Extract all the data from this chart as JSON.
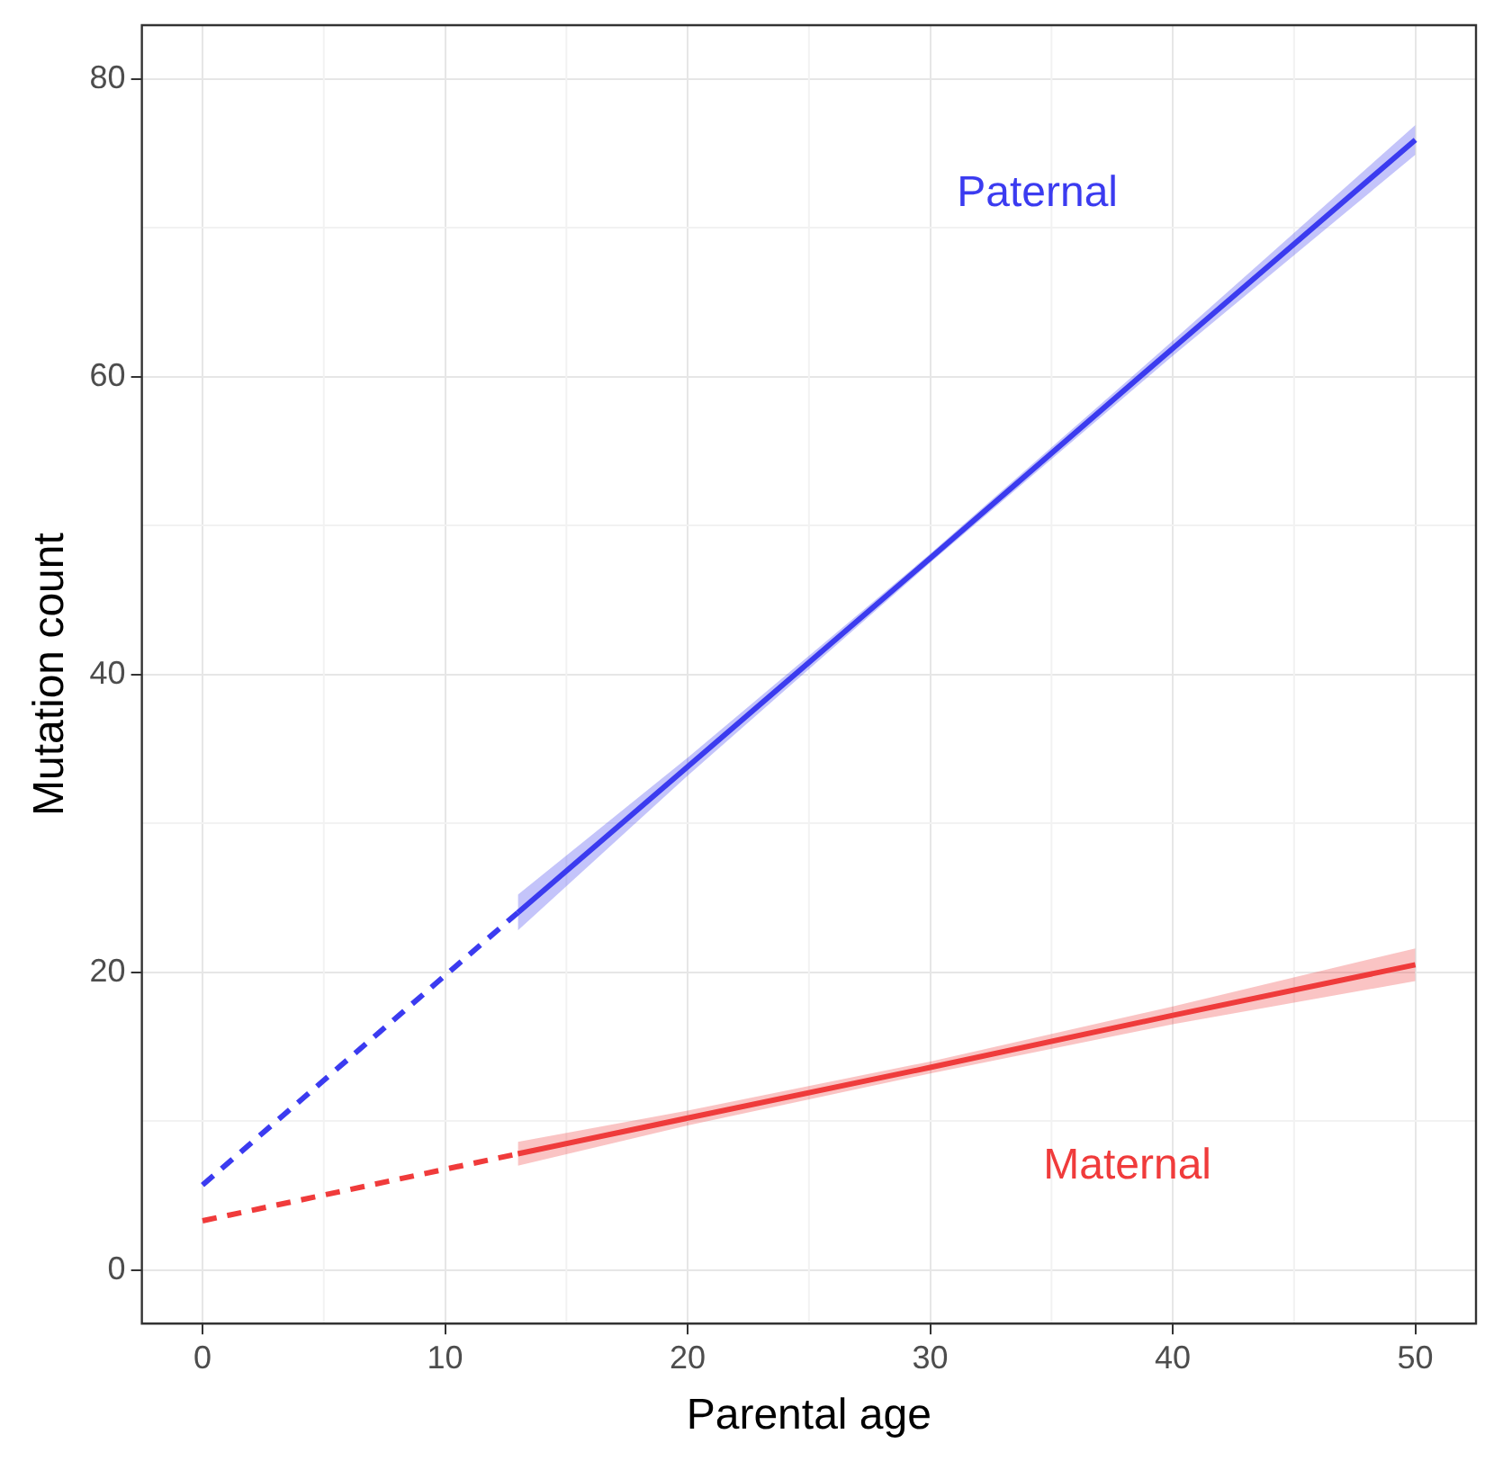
{
  "chart_data": {
    "type": "line",
    "xlabel": "Parental age",
    "ylabel": "Mutation count",
    "xlim": [
      -2.5,
      52.5
    ],
    "ylim": [
      -3.6,
      83.6
    ],
    "xticks": [
      0,
      10,
      20,
      30,
      40,
      50
    ],
    "yticks": [
      0,
      20,
      40,
      60,
      80
    ],
    "grid": true,
    "legend": false,
    "marker": "none",
    "series": [
      {
        "name": "Paternal",
        "color": "#3b3bf0",
        "line_style": "solid",
        "x": [
          13,
          20,
          30,
          40,
          50
        ],
        "values": [
          24.0,
          33.8,
          47.8,
          61.9,
          75.9
        ],
        "lower": [
          22.8,
          33.2,
          47.5,
          61.4,
          74.9
        ],
        "upper": [
          25.2,
          34.4,
          48.1,
          62.4,
          76.9
        ]
      },
      {
        "color": "#3b3bf0",
        "line_style": "dashed",
        "x": [
          0,
          13
        ],
        "values": [
          5.7,
          24.0
        ]
      },
      {
        "name": "Maternal",
        "color": "#f03b3b",
        "line_style": "solid",
        "x": [
          13,
          20,
          30,
          40,
          50
        ],
        "values": [
          7.8,
          10.2,
          13.6,
          17.1,
          20.5
        ],
        "lower": [
          7.0,
          9.7,
          13.2,
          16.5,
          19.4
        ],
        "upper": [
          8.6,
          10.7,
          14.0,
          17.7,
          21.6
        ]
      },
      {
        "color": "#f03b3b",
        "line_style": "dashed",
        "x": [
          0,
          13
        ],
        "values": [
          3.3,
          7.8
        ]
      }
    ]
  }
}
